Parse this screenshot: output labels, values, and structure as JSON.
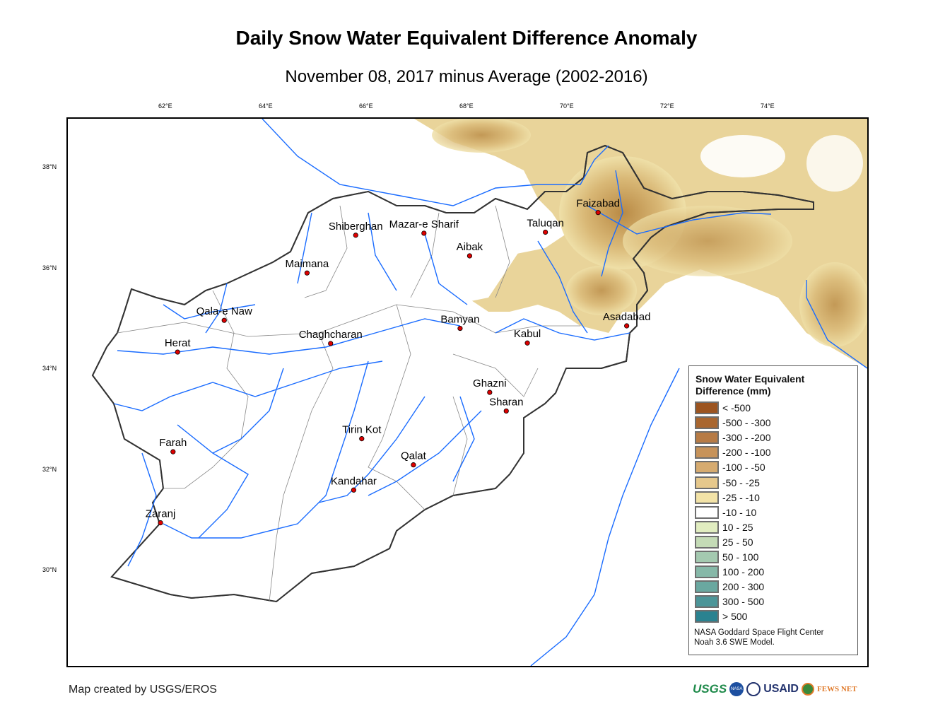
{
  "title": "Daily Snow Water Equivalent Difference Anomaly",
  "subtitle": "November 08, 2017 minus Average (2002-2016)",
  "axes": {
    "lon_ticks": [
      {
        "value": 62,
        "label": "62°E"
      },
      {
        "value": 64,
        "label": "64°E"
      },
      {
        "value": 66,
        "label": "66°E"
      },
      {
        "value": 68,
        "label": "68°E"
      },
      {
        "value": 70,
        "label": "70°E"
      },
      {
        "value": 72,
        "label": "72°E"
      },
      {
        "value": 74,
        "label": "74°E"
      }
    ],
    "lat_ticks": [
      {
        "value": 38,
        "label": "38°N"
      },
      {
        "value": 36,
        "label": "36°N"
      },
      {
        "value": 34,
        "label": "34°N"
      },
      {
        "value": 32,
        "label": "32°N"
      },
      {
        "value": 30,
        "label": "30°N"
      }
    ]
  },
  "cities": [
    {
      "name": "Faizabad",
      "lon": 70.58,
      "lat": 37.12
    },
    {
      "name": "Taluqan",
      "lon": 69.53,
      "lat": 36.73
    },
    {
      "name": "Mazar-e Sharif",
      "lon": 67.11,
      "lat": 36.71
    },
    {
      "name": "Shiberghan",
      "lon": 65.75,
      "lat": 36.67
    },
    {
      "name": "Aibak",
      "lon": 68.02,
      "lat": 36.26
    },
    {
      "name": "Maimana",
      "lon": 64.78,
      "lat": 35.92
    },
    {
      "name": "Qala-e Naw",
      "lon": 63.13,
      "lat": 34.98
    },
    {
      "name": "Herat",
      "lon": 62.2,
      "lat": 34.35
    },
    {
      "name": "Chaghcharan",
      "lon": 65.25,
      "lat": 34.52
    },
    {
      "name": "Bamyan",
      "lon": 67.83,
      "lat": 34.82
    },
    {
      "name": "Kabul",
      "lon": 69.17,
      "lat": 34.53
    },
    {
      "name": "Asadabad",
      "lon": 71.15,
      "lat": 34.87
    },
    {
      "name": "Ghazni",
      "lon": 68.42,
      "lat": 33.55
    },
    {
      "name": "Sharan",
      "lon": 68.75,
      "lat": 33.18
    },
    {
      "name": "Tirin Kot",
      "lon": 65.87,
      "lat": 32.63
    },
    {
      "name": "Farah",
      "lon": 62.11,
      "lat": 32.37
    },
    {
      "name": "Qalat",
      "lon": 66.9,
      "lat": 32.11
    },
    {
      "name": "Kandahar",
      "lon": 65.71,
      "lat": 31.61
    },
    {
      "name": "Zaranj",
      "lon": 61.86,
      "lat": 30.96
    }
  ],
  "legend": {
    "title_line1": "Snow Water Equivalent",
    "title_line2": "Difference (mm)",
    "items": [
      {
        "label": "< -500",
        "color": "#9c5420"
      },
      {
        "label": "-500 - -300",
        "color": "#a9662f"
      },
      {
        "label": "-300 - -200",
        "color": "#b77b45"
      },
      {
        "label": "-200 - -100",
        "color": "#c7935a"
      },
      {
        "label": "-100 - -50",
        "color": "#d6ab70"
      },
      {
        "label": "-50 - -25",
        "color": "#e6c88c"
      },
      {
        "label": "-25 - -10",
        "color": "#f3e3a7"
      },
      {
        "label": "-10 - 10",
        "color": "#ffffff"
      },
      {
        "label": "10 - 25",
        "color": "#e1edc0"
      },
      {
        "label": "25 - 50",
        "color": "#c4dbb6"
      },
      {
        "label": "50 - 100",
        "color": "#a4c9b0"
      },
      {
        "label": "100 - 200",
        "color": "#86b8a8"
      },
      {
        "label": "200 - 300",
        "color": "#6aa8a0"
      },
      {
        "label": "300 - 500",
        "color": "#4c9598"
      },
      {
        "label": "> 500",
        "color": "#2a8290"
      }
    ],
    "credit_line1": "NASA Goddard Space Flight Center",
    "credit_line2": "Noah 3.6 SWE Model."
  },
  "footer": {
    "credit": "Map created by USGS/EROS",
    "logos": [
      "USGS",
      "NASA",
      "USAID",
      "FEWS NET"
    ]
  },
  "colors": {
    "river": "#1a6cff",
    "border": "#333333",
    "city": "#dd0000"
  }
}
